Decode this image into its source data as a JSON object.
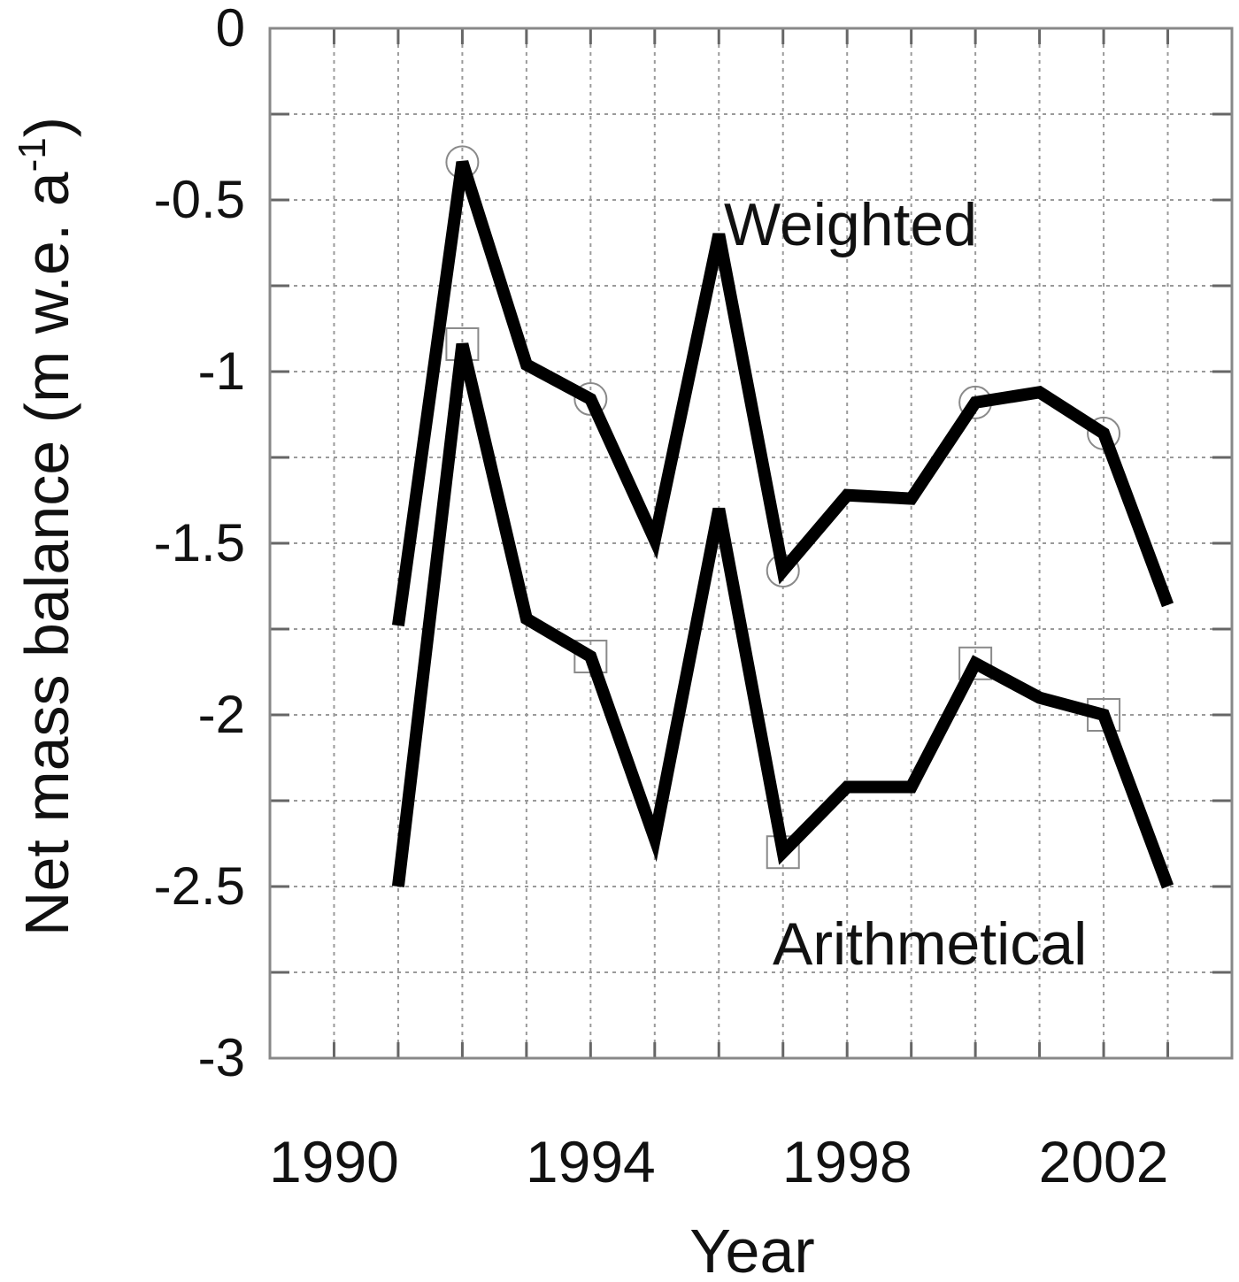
{
  "chart_data": {
    "type": "line",
    "xlabel": "Year",
    "ylabel_main": "Net mass balance (m w.e. a",
    "ylabel_sup": "-1",
    "ylabel_close": ")",
    "xlim": [
      1989,
      2004
    ],
    "ylim": [
      -3,
      0
    ],
    "xticks": [
      1990,
      1994,
      1998,
      2002
    ],
    "yticks": [
      0,
      -0.5,
      -1,
      -1.5,
      -2,
      -2.5,
      -3
    ],
    "ytick_labels": [
      "0",
      "-0.5",
      "-1",
      "-1.5",
      "-2",
      "-2.5",
      "-3"
    ],
    "grid": true,
    "series": [
      {
        "name": "Weighted",
        "marker": "circle",
        "x": [
          1991,
          1992,
          1993,
          1994,
          1995,
          1996,
          1997,
          1998,
          1999,
          2000,
          2001,
          2002,
          2003
        ],
        "y": [
          -1.74,
          -0.39,
          -0.98,
          -1.08,
          -1.49,
          -0.6,
          -1.58,
          -1.36,
          -1.37,
          -1.09,
          -1.06,
          -1.18,
          -1.68
        ],
        "marker_x": [
          1992,
          1994,
          1997,
          2000,
          2002
        ]
      },
      {
        "name": "Arithmetical",
        "marker": "square",
        "x": [
          1991,
          1992,
          1993,
          1994,
          1995,
          1996,
          1997,
          1998,
          1999,
          2000,
          2001,
          2002,
          2003
        ],
        "y": [
          -2.5,
          -0.92,
          -1.72,
          -1.83,
          -2.36,
          -1.4,
          -2.4,
          -2.21,
          -2.21,
          -1.85,
          -1.95,
          -2.0,
          -2.5
        ],
        "marker_x": [
          1992,
          1994,
          1997,
          2000,
          2002
        ]
      }
    ]
  }
}
